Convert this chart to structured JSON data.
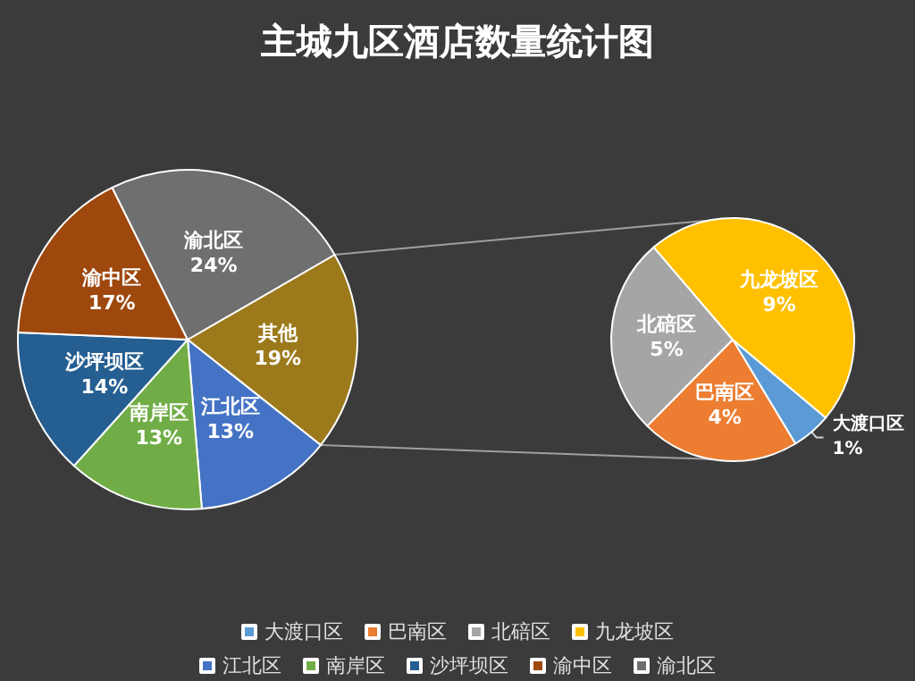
{
  "chart_data": [
    {
      "type": "pie",
      "title": "主城九区酒店数量统计图",
      "categories": [
        "其他",
        "江北区",
        "南岸区",
        "沙坪坝区",
        "渝中区",
        "渝北区"
      ],
      "values": [
        19,
        13,
        13,
        14,
        17,
        24
      ],
      "value_labels": [
        "19%",
        "13%",
        "13%",
        "14%",
        "17%",
        "24%"
      ],
      "colors": [
        "#9c7a1c",
        "#4472c4",
        "#70ad47",
        "#255e91",
        "#9e480e",
        "#6f6f6f"
      ],
      "legend": "bottom"
    },
    {
      "type": "pie",
      "categories": [
        "大渡口区",
        "巴南区",
        "北碚区",
        "九龙坡区"
      ],
      "values": [
        1,
        4,
        5,
        9
      ],
      "value_labels": [
        "1%",
        "4%",
        "5%",
        "9%"
      ],
      "colors": [
        "#5b9bd5",
        "#ed7d31",
        "#a5a5a5",
        "#ffc000"
      ],
      "legend": "bottom"
    }
  ]
}
